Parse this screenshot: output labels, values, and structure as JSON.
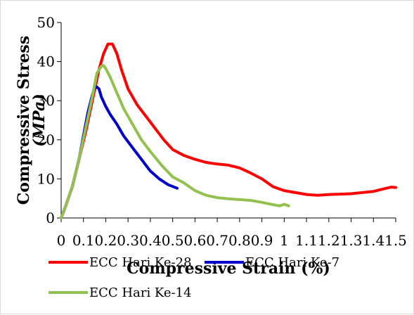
{
  "chart_data": {
    "type": "line",
    "title": "",
    "xlabel": "Compressive Strain (%)",
    "ylabel_line1": "Compressive Stress",
    "ylabel_line2": "(MPa)",
    "xlim": [
      0,
      1.5
    ],
    "ylim": [
      0,
      50
    ],
    "x_ticks": [
      "0",
      "0.1",
      "0.2",
      "0.3",
      "0.4",
      "0.5",
      "0.6",
      "0.7",
      "0.8",
      "0.9",
      "1",
      "1.1",
      "1.2",
      "1.3",
      "1.4",
      "1.5"
    ],
    "y_ticks": [
      "0",
      "10",
      "20",
      "30",
      "40",
      "50"
    ],
    "grid": false,
    "legend_position": "bottom",
    "series": [
      {
        "name": "ECC Hari Ke-28",
        "color": "#ff0000",
        "x": [
          0,
          0.02,
          0.05,
          0.08,
          0.11,
          0.14,
          0.17,
          0.19,
          0.21,
          0.23,
          0.25,
          0.27,
          0.3,
          0.34,
          0.38,
          0.42,
          0.46,
          0.5,
          0.55,
          0.6,
          0.65,
          0.7,
          0.75,
          0.8,
          0.85,
          0.9,
          0.95,
          1.0,
          1.05,
          1.1,
          1.15,
          1.2,
          1.25,
          1.3,
          1.35,
          1.4,
          1.45,
          1.48,
          1.5
        ],
        "y": [
          0,
          3,
          8,
          15,
          22,
          30,
          38,
          42,
          44.5,
          44.5,
          42,
          38,
          33,
          29,
          26,
          23,
          20,
          17.5,
          16,
          15,
          14.2,
          13.8,
          13.5,
          12.8,
          11.5,
          10,
          8,
          7,
          6.5,
          6,
          5.8,
          6,
          6.1,
          6.2,
          6.5,
          6.8,
          7.5,
          7.9,
          7.8
        ]
      },
      {
        "name": "ECC Hari Ke-7",
        "color": "#0000cc",
        "x": [
          0,
          0.02,
          0.05,
          0.08,
          0.1,
          0.12,
          0.14,
          0.15,
          0.16,
          0.17,
          0.18,
          0.2,
          0.22,
          0.25,
          0.28,
          0.32,
          0.36,
          0.4,
          0.44,
          0.48,
          0.52
        ],
        "y": [
          0,
          3,
          8,
          15,
          21,
          27,
          31.5,
          33.2,
          33.5,
          33,
          31,
          28.5,
          26.5,
          24,
          21,
          18,
          15,
          12,
          10,
          8.5,
          7.6
        ]
      },
      {
        "name": "ECC Hari Ke-14",
        "color": "#92c150",
        "x": [
          0,
          0.02,
          0.05,
          0.08,
          0.11,
          0.14,
          0.16,
          0.18,
          0.19,
          0.2,
          0.22,
          0.25,
          0.28,
          0.32,
          0.36,
          0.4,
          0.45,
          0.5,
          0.55,
          0.6,
          0.65,
          0.7,
          0.75,
          0.8,
          0.85,
          0.9,
          0.95,
          0.98,
          1.0,
          1.02
        ],
        "y": [
          0,
          3,
          8,
          15,
          23,
          31,
          37,
          38.8,
          39,
          38.2,
          36,
          32,
          28,
          24,
          20,
          17,
          13.5,
          10.5,
          9,
          7,
          5.8,
          5.2,
          4.9,
          4.7,
          4.5,
          4,
          3.4,
          3.1,
          3.5,
          3.1
        ]
      }
    ]
  }
}
